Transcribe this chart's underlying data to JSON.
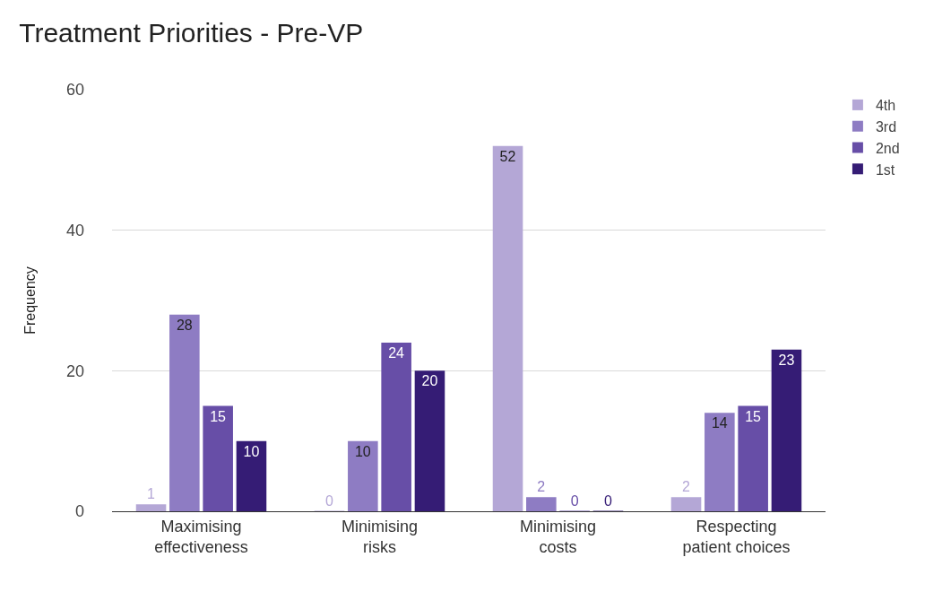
{
  "chart_data": {
    "type": "bar",
    "title": "Treatment Priorities - Pre-VP",
    "ylabel": "Frequency",
    "categories": [
      "Maximising effectiveness",
      "Minimising risks",
      "Minimising costs",
      "Respecting patient choices"
    ],
    "series": [
      {
        "name": "4th",
        "color": "#b4a7d6",
        "values": [
          1,
          0,
          52,
          2
        ]
      },
      {
        "name": "3rd",
        "color": "#8e7cc3",
        "values": [
          28,
          10,
          2,
          14
        ]
      },
      {
        "name": "2nd",
        "color": "#674ea7",
        "values": [
          15,
          24,
          0,
          15
        ]
      },
      {
        "name": "1st",
        "color": "#351c75",
        "values": [
          10,
          20,
          0,
          23
        ]
      }
    ],
    "ylim": [
      0,
      60
    ],
    "yticks": [
      0,
      20,
      40,
      60
    ],
    "grid": "y",
    "legend": "top right",
    "data_labels": true
  }
}
